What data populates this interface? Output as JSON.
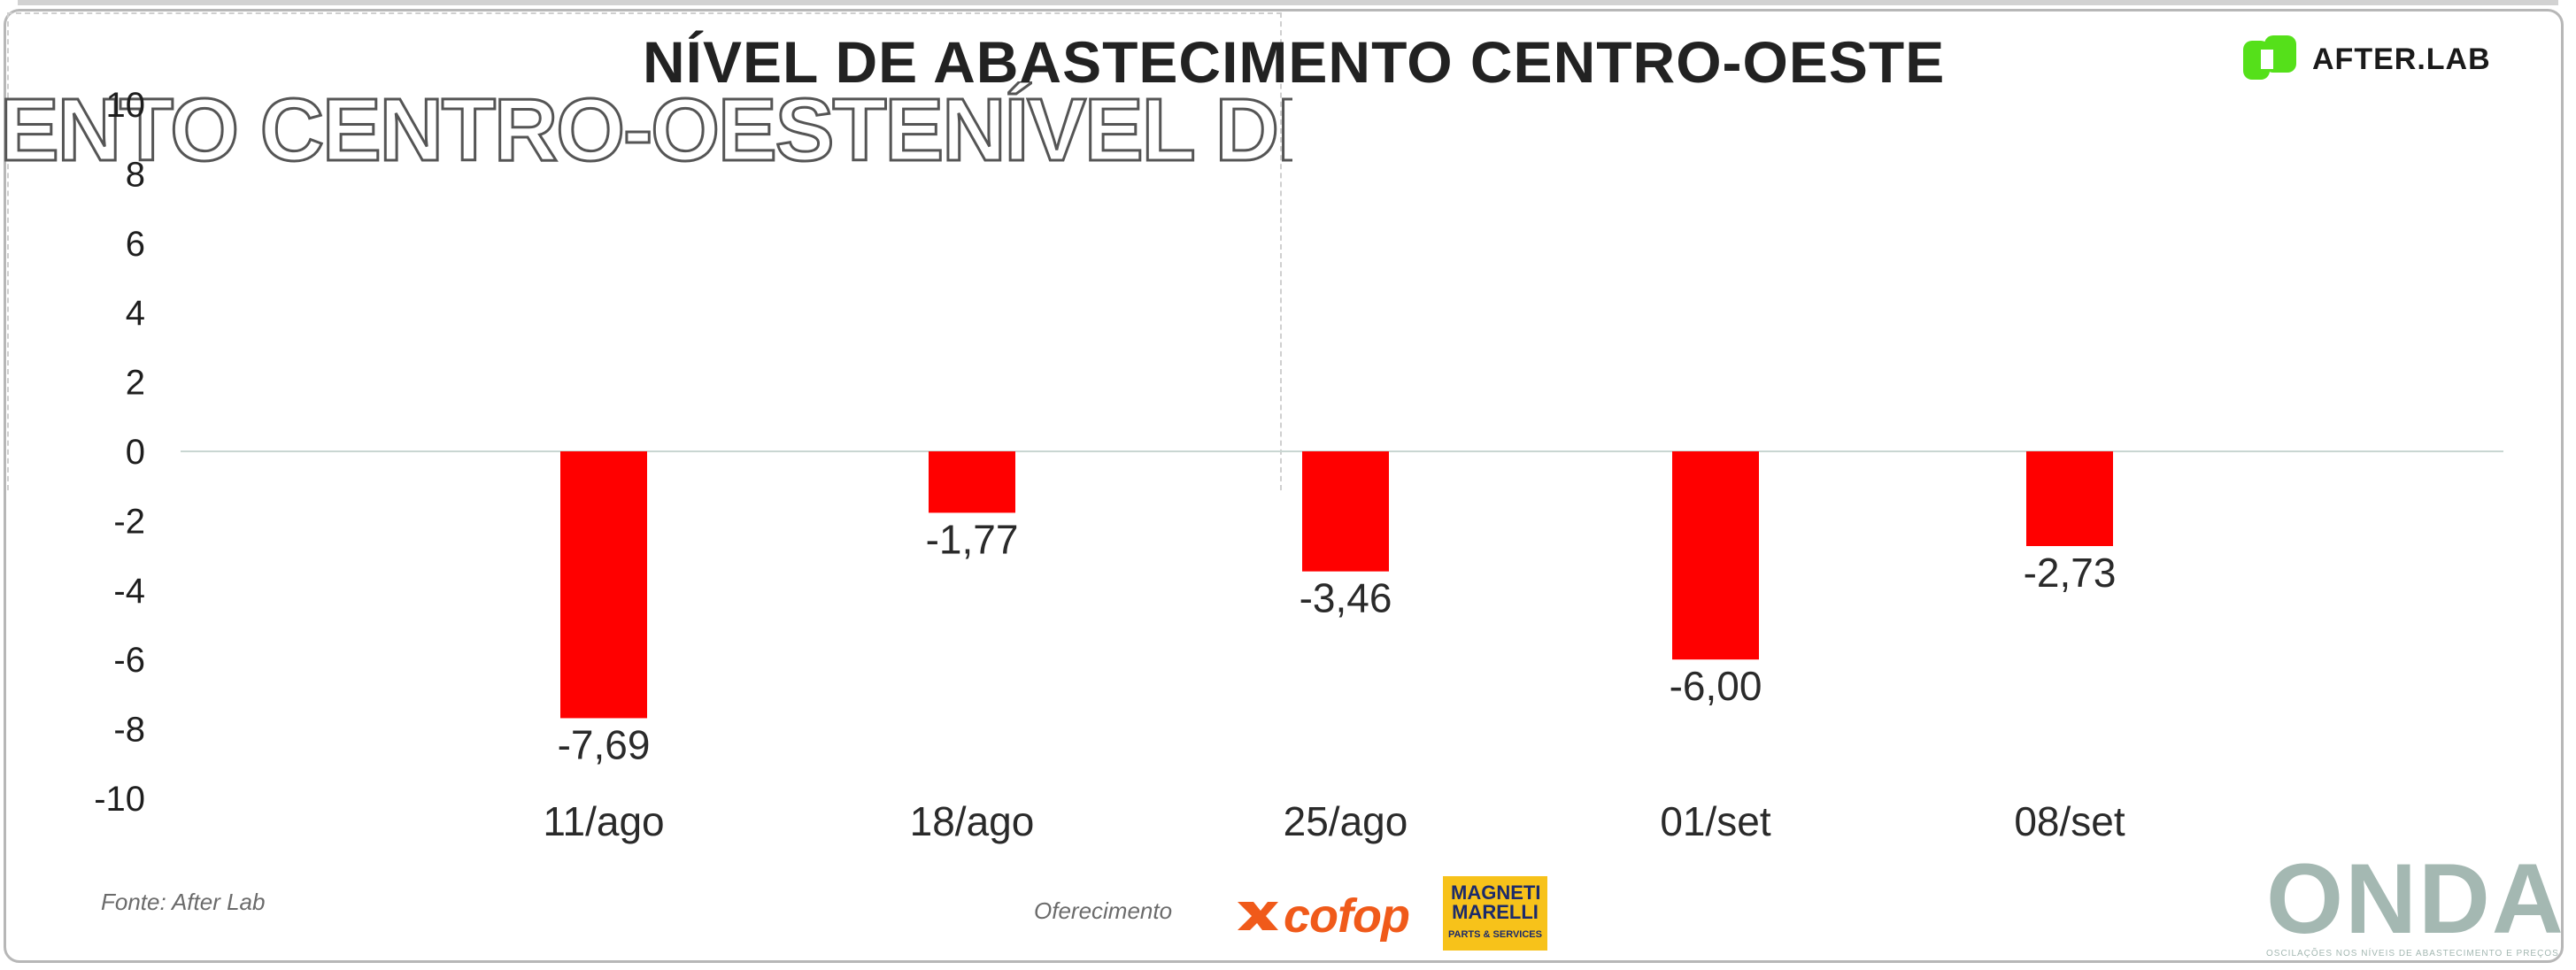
{
  "title": "NÍVEL DE ABASTECIMENTO CENTRO-OESTE",
  "ghost_title": "ENTO CENTRO-OESTENÍVEL DE ABASTECIM",
  "brand": {
    "label": "AFTER.LAB",
    "color": "#55e01a",
    "icon": "afterlab-logo-icon"
  },
  "source": "Fonte: After Lab",
  "sponsor_text": "Oferecimento",
  "sponsors": {
    "cofop": {
      "label": "cofop",
      "color": "#f05a1a",
      "icon": "cofop-logo-icon"
    },
    "magneti": {
      "label": "MAGNETI MARELLI",
      "sub": "PARTS & SERVICES",
      "bg": "#f7c21a"
    }
  },
  "onda": {
    "label": "ONDA",
    "sub": "OSCILAÇÕES NOS NÍVEIS DE ABASTECIMENTO E PREÇOS"
  },
  "chart_data": {
    "type": "bar",
    "title": "NÍVEL DE ABASTECIMENTO CENTRO-OESTE",
    "categories": [
      "11/ago",
      "18/ago",
      "25/ago",
      "01/set",
      "08/set"
    ],
    "values": [
      -7.69,
      -1.77,
      -3.46,
      -6.0,
      -2.73
    ],
    "value_labels": [
      "-7,69",
      "-1,77",
      "-3,46",
      "-6,00",
      "-2,73"
    ],
    "ylim": [
      -10,
      10
    ],
    "yticks": [
      10,
      8,
      6,
      4,
      2,
      0,
      -2,
      -4,
      -6,
      -8,
      -10
    ],
    "bar_color": "#ff0000",
    "grid": false,
    "legend": "none",
    "xlabel": "",
    "ylabel": ""
  }
}
